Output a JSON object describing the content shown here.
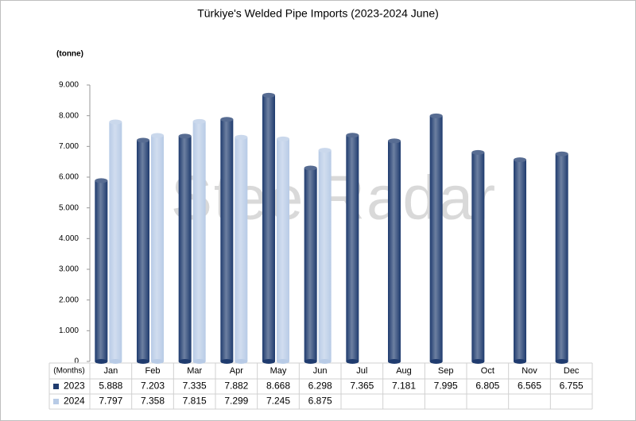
{
  "chart_data": {
    "type": "bar",
    "title": "Türkiye's Welded Pipe Imports (2023-2024 June)",
    "y_label": "(tonne)",
    "x_label": "(Months)",
    "watermark": "SteelRadar",
    "categories": [
      "Jan",
      "Feb",
      "Mar",
      "Apr",
      "May",
      "Jun",
      "Jul",
      "Aug",
      "Sep",
      "Oct",
      "Nov",
      "Dec"
    ],
    "series": [
      {
        "name": "2023",
        "color": "#1f3b6e",
        "values": [
          5888,
          7203,
          7335,
          7882,
          8668,
          6298,
          7365,
          7181,
          7995,
          6805,
          6565,
          6755
        ],
        "value_labels": [
          "5.888",
          "7.203",
          "7.335",
          "7.882",
          "8.668",
          "6.298",
          "7.365",
          "7.181",
          "7.995",
          "6.805",
          "6.565",
          "6.755"
        ]
      },
      {
        "name": "2024",
        "color": "#b8cbe6",
        "values": [
          7797,
          7358,
          7815,
          7299,
          7245,
          6875,
          null,
          null,
          null,
          null,
          null,
          null
        ],
        "value_labels": [
          "7.797",
          "7.358",
          "7.815",
          "7.299",
          "7.245",
          "6.875",
          null,
          null,
          null,
          null,
          null,
          null
        ]
      }
    ],
    "ylim": [
      0,
      9000
    ],
    "yticks": [
      0,
      {
        "value": 1000,
        "label": "1.000"
      },
      {
        "value": 2000,
        "label": "2.000"
      },
      {
        "value": 3000,
        "label": "3.000"
      },
      {
        "value": 4000,
        "label": "4.000"
      },
      {
        "value": 5000,
        "label": "5.000"
      },
      {
        "value": 6000,
        "label": "6.000"
      },
      {
        "value": 7000,
        "label": "7.000"
      },
      {
        "value": 8000,
        "label": "8.000"
      },
      {
        "value": 9000,
        "label": "9.000"
      }
    ],
    "grid": false
  }
}
